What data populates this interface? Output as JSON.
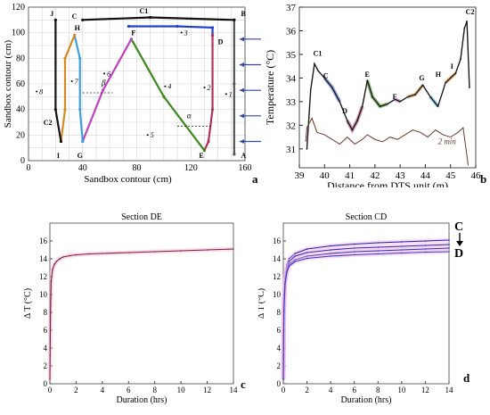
{
  "panel_letters": {
    "a": "a",
    "b": "b",
    "c": "c",
    "d": "d"
  },
  "chart_data": [
    {
      "panel": "a",
      "type": "scatter",
      "xlabel": "Sandbox contour (cm)",
      "ylabel": "Sandbox contour (cm)",
      "xlim": [
        0,
        160
      ],
      "ylim": [
        0,
        120
      ],
      "xticks": [
        0,
        40,
        80,
        120,
        160
      ],
      "yticks": [
        0,
        20,
        40,
        60,
        80,
        100,
        120
      ],
      "grid": true,
      "point_labels": [
        "A",
        "B",
        "C",
        "D",
        "E",
        "F",
        "G",
        "H",
        "I",
        "J",
        "C1",
        "C2"
      ],
      "sensor_labels": [
        "1",
        "2",
        "3",
        "4",
        "5",
        "6",
        "7",
        "8"
      ],
      "angle_labels": [
        "α",
        "β"
      ],
      "sections": [
        {
          "name": "AB",
          "color": "#555555",
          "x": [
            152,
            152,
            152
          ],
          "y": [
            5,
            60,
            110
          ]
        },
        {
          "name": "BC",
          "color": "#111111",
          "x": [
            152,
            90,
            40
          ],
          "y": [
            110,
            112,
            110
          ]
        },
        {
          "name": "CD",
          "color": "#1f3fcf",
          "x": [
            74,
            110,
            136,
            136
          ],
          "y": [
            105,
            105,
            104,
            98
          ]
        },
        {
          "name": "DE",
          "color": "#b0305a",
          "x": [
            136,
            136,
            133,
            130
          ],
          "y": [
            98,
            40,
            15,
            8
          ]
        },
        {
          "name": "EF",
          "color": "#3a8a1c",
          "x": [
            130,
            100,
            76
          ],
          "y": [
            8,
            50,
            95
          ]
        },
        {
          "name": "FG",
          "color": "#c040c0",
          "x": [
            76,
            55,
            40
          ],
          "y": [
            95,
            55,
            15
          ]
        },
        {
          "name": "GH",
          "color": "#3aa0e0",
          "x": [
            40,
            38,
            38,
            34
          ],
          "y": [
            15,
            40,
            80,
            98
          ]
        },
        {
          "name": "HI",
          "color": "#d88a20",
          "x": [
            34,
            27,
            27,
            24
          ],
          "y": [
            98,
            80,
            40,
            15
          ]
        },
        {
          "name": "IJ",
          "color": "#111111",
          "x": [
            24,
            20,
            20
          ],
          "y": [
            15,
            40,
            110
          ]
        }
      ]
    },
    {
      "panel": "b",
      "type": "line",
      "xlabel": "Distance from DTS unit (m)",
      "ylabel": "Temperature (°C)",
      "xlim": [
        39,
        46
      ],
      "ylim": [
        30.2,
        37
      ],
      "xticks": [
        39,
        40,
        41,
        42,
        43,
        44,
        45,
        46
      ],
      "yticks": [
        31,
        32,
        33,
        34,
        35,
        36,
        37
      ],
      "point_labels": [
        "C1",
        "C",
        "D",
        "E",
        "F",
        "G",
        "H",
        "I",
        "C2"
      ],
      "annotation": "2 min",
      "series": [
        {
          "name": "",
          "color": "#1a1a1a",
          "x": [
            39.3,
            39.45,
            39.6,
            39.75,
            40.0,
            40.3,
            40.6,
            40.9,
            41.1,
            41.3,
            41.5,
            41.7,
            41.9,
            42.2,
            42.5,
            42.8,
            43.0,
            43.3,
            43.6,
            43.9,
            44.2,
            44.5,
            44.8,
            45.0,
            45.2,
            45.4,
            45.55,
            45.65,
            45.75
          ],
          "y": [
            31.0,
            33.5,
            34.6,
            34.3,
            34.0,
            33.6,
            33.0,
            32.2,
            31.8,
            32.2,
            32.8,
            33.9,
            33.2,
            32.8,
            32.9,
            33.1,
            33.0,
            33.2,
            33.3,
            33.7,
            33.2,
            32.8,
            33.8,
            34.0,
            34.2,
            34.8,
            36.1,
            36.4,
            33.6
          ]
        },
        {
          "name": "2 min",
          "color": "#6b3a2a",
          "x": [
            39.25,
            39.3,
            39.5,
            39.7,
            40.0,
            40.3,
            40.6,
            40.9,
            41.2,
            41.5,
            41.7,
            42.0,
            42.3,
            42.6,
            42.9,
            43.2,
            43.5,
            43.8,
            44.1,
            44.4,
            44.7,
            45.0,
            45.3,
            45.5,
            45.6,
            45.7
          ],
          "y": [
            31.3,
            31.9,
            32.3,
            31.7,
            31.6,
            31.4,
            31.2,
            31.5,
            31.2,
            31.4,
            31.6,
            31.4,
            31.3,
            31.5,
            31.4,
            31.6,
            31.8,
            31.7,
            31.5,
            31.8,
            31.6,
            31.5,
            31.7,
            31.9,
            31.1,
            30.3
          ]
        }
      ]
    },
    {
      "panel": "c",
      "type": "line",
      "title": "Section DE",
      "xlabel": "Duration (hrs)",
      "ylabel": "Δ T (°C)",
      "xlim": [
        0,
        14
      ],
      "ylim": [
        0,
        18
      ],
      "xticks": [
        0,
        2,
        4,
        6,
        8,
        10,
        12,
        14
      ],
      "yticks": [
        0,
        2,
        4,
        6,
        8,
        10,
        12,
        14,
        16
      ],
      "series": [
        {
          "name": "",
          "color": "#7a2030",
          "x": [
            0.0,
            0.05,
            0.1,
            0.2,
            0.35,
            0.5,
            0.75,
            1,
            1.5,
            2,
            3,
            4,
            6,
            8,
            10,
            12,
            14
          ],
          "y": [
            0.5,
            8,
            11.5,
            12.8,
            13.4,
            13.7,
            14.0,
            14.2,
            14.35,
            14.45,
            14.55,
            14.6,
            14.7,
            14.8,
            14.9,
            15.0,
            15.1
          ]
        }
      ]
    },
    {
      "panel": "d",
      "type": "line",
      "title": "Section CD",
      "xlabel": "Duration (hrs)",
      "ylabel": "Δ T (°C)",
      "xlim": [
        0,
        14
      ],
      "ylim": [
        0,
        18
      ],
      "xticks": [
        0,
        2,
        4,
        6,
        8,
        10,
        12,
        14
      ],
      "yticks": [
        0,
        2,
        4,
        6,
        8,
        10,
        12,
        14,
        16
      ],
      "end_labels": {
        "top": "C",
        "bottom": "D"
      },
      "series": [
        {
          "name": "",
          "color": "#2020b0",
          "x": [
            0,
            0.05,
            0.15,
            0.3,
            0.5,
            1,
            2,
            4,
            6,
            8,
            10,
            12,
            14
          ],
          "y": [
            0.5,
            9,
            12,
            13.3,
            14.0,
            14.6,
            15.1,
            15.45,
            15.65,
            15.8,
            15.9,
            16.0,
            16.1
          ]
        },
        {
          "name": "",
          "color": "#2828b8",
          "x": [
            0,
            0.05,
            0.15,
            0.3,
            0.5,
            1,
            2,
            4,
            6,
            8,
            10,
            12,
            14
          ],
          "y": [
            0.5,
            8.7,
            11.7,
            13.0,
            13.7,
            14.3,
            14.7,
            15.0,
            15.2,
            15.3,
            15.4,
            15.5,
            15.6
          ]
        },
        {
          "name": "",
          "color": "#3030c0",
          "x": [
            0,
            0.05,
            0.15,
            0.3,
            0.5,
            1,
            2,
            4,
            6,
            8,
            10,
            12,
            14
          ],
          "y": [
            0.5,
            8.4,
            11.4,
            12.7,
            13.4,
            13.9,
            14.3,
            14.6,
            14.8,
            14.9,
            15.0,
            15.1,
            15.2
          ]
        },
        {
          "name": "",
          "color": "#3838c8",
          "x": [
            0,
            0.05,
            0.15,
            0.3,
            0.5,
            1,
            2,
            4,
            6,
            8,
            10,
            12,
            14
          ],
          "y": [
            0.5,
            8.2,
            11.2,
            12.5,
            13.2,
            13.7,
            14.05,
            14.3,
            14.45,
            14.55,
            14.65,
            14.75,
            14.8
          ]
        }
      ]
    }
  ]
}
